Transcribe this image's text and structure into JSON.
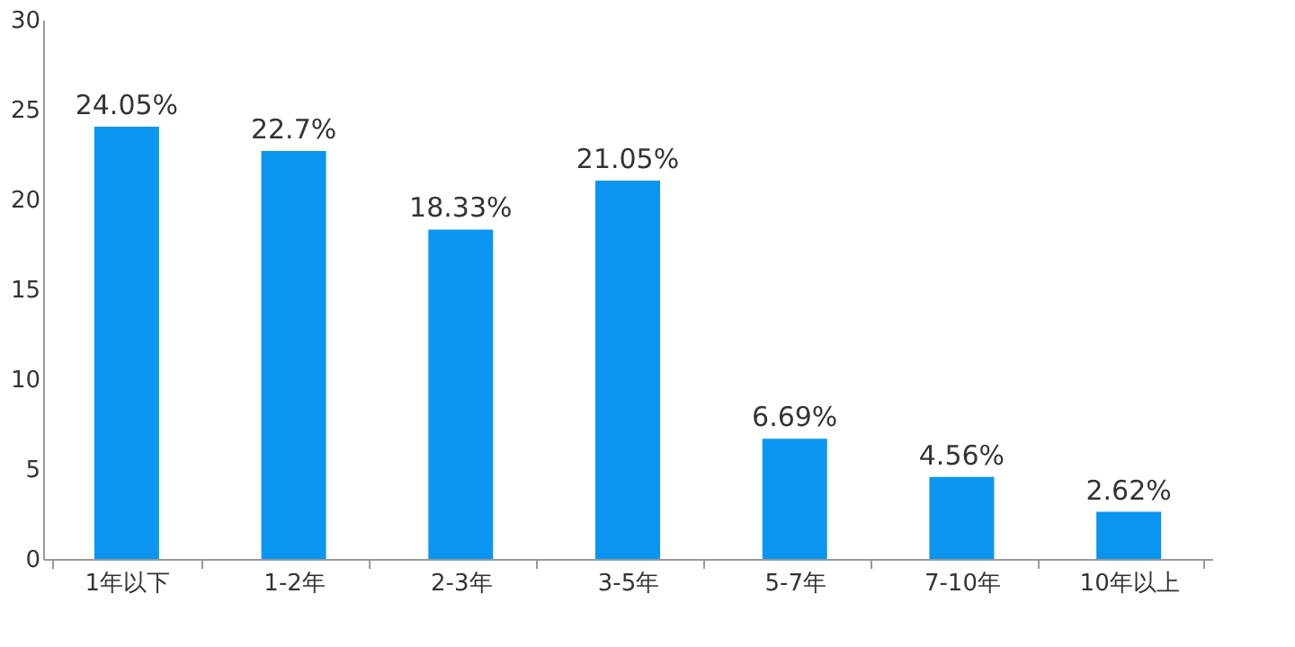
{
  "chart_data": {
    "type": "bar",
    "categories": [
      "1年以下",
      "1-2年",
      "2-3年",
      "3-5年",
      "5-7年",
      "7-10年",
      "10年以上"
    ],
    "values": [
      24.05,
      22.7,
      18.33,
      21.05,
      6.69,
      4.56,
      2.62
    ],
    "value_labels": [
      "24.05%",
      "22.7%",
      "18.33%",
      "21.05%",
      "6.69%",
      "4.56%",
      "2.62%"
    ],
    "color": "#0a96f0",
    "ylim": [
      0,
      30
    ],
    "yticks": [
      0,
      5,
      10,
      15,
      20,
      25,
      30
    ],
    "grid": false
  }
}
